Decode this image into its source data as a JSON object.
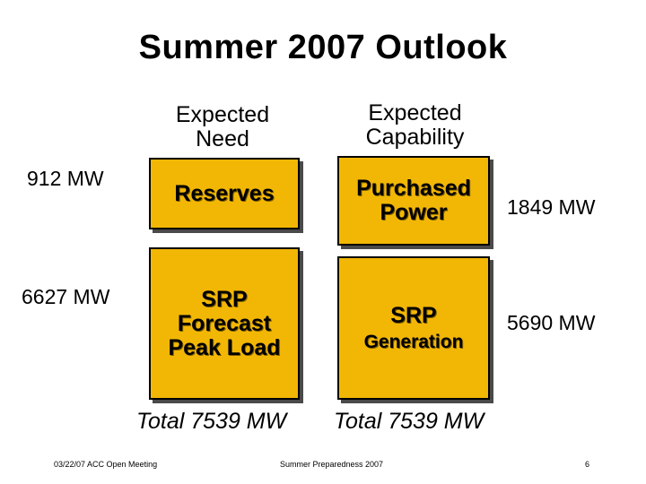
{
  "slide": {
    "title": "Summer 2007 Outlook",
    "need_header": "Expected\nNeed",
    "capability_header": "Expected\nCapability",
    "reserves_mw": "912 MW",
    "peak_mw": "6627 MW",
    "purchased_mw": "1849 MW",
    "generation_mw": "5690 MW",
    "box_reserves": "Reserves",
    "box_peak": "SRP\nForecast\nPeak Load",
    "box_purchased": "Purchased\nPower",
    "box_generation_title": "SRP",
    "box_generation_sub": "Generation",
    "total_need": "Total 7539 MW",
    "total_capability": "Total 7539 MW"
  },
  "footer": {
    "left": "03/22/07 ACC Open Meeting",
    "center": "Summer Preparedness 2007",
    "page": "6"
  },
  "colors": {
    "box_fill": "#f2b705",
    "box_shadow": "#4a4a4a"
  }
}
